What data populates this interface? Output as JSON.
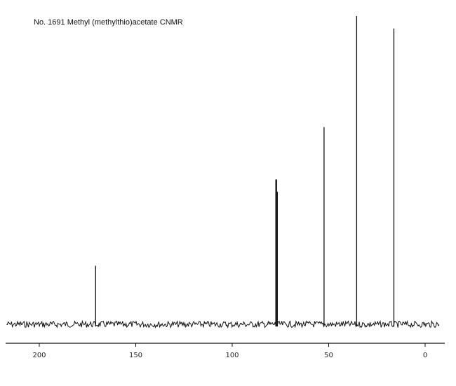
{
  "chart_data": {
    "type": "line",
    "title": "No. 1691 Methyl (methylthio)acetate CNMR",
    "xlabel": "",
    "ylabel": "",
    "xlim": [
      220,
      -10
    ],
    "ylim": [
      0,
      100
    ],
    "x_ticks": [
      200,
      150,
      100,
      50,
      0
    ],
    "x_tick_labels": [
      "200",
      "150",
      "100",
      "50",
      "0"
    ],
    "grid": false,
    "peaks": [
      {
        "ppm": 170.8,
        "intensity": 19
      },
      {
        "ppm": 77.4,
        "intensity": 47
      },
      {
        "ppm": 77.0,
        "intensity": 47
      },
      {
        "ppm": 76.6,
        "intensity": 43
      },
      {
        "ppm": 52.4,
        "intensity": 64
      },
      {
        "ppm": 35.5,
        "intensity": 100
      },
      {
        "ppm": 16.2,
        "intensity": 96
      }
    ]
  }
}
